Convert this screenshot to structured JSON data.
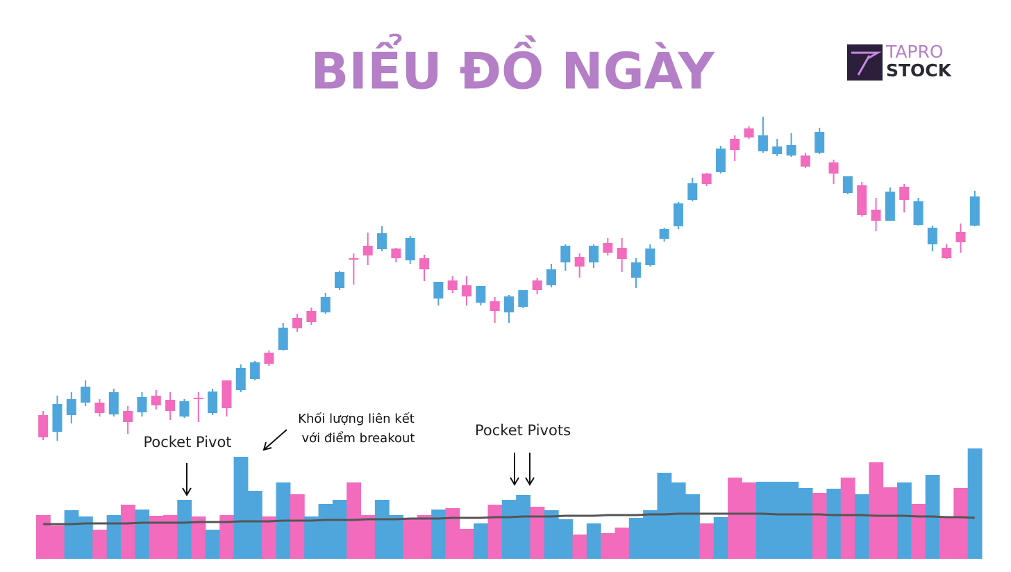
{
  "chart_data": {
    "type": "candlestick",
    "title": "BIỂU ĐỒ NGÀY",
    "up_color": "#4ea6dc",
    "down_color": "#f26bbd",
    "ylim": [
      0,
      500
    ],
    "y2lim": [
      0,
      160
    ],
    "open": [
      62,
      38,
      62,
      80,
      80,
      63,
      68,
      66,
      90,
      84,
      60,
      87,
      65,
      112,
      98,
      114,
      152,
      156,
      202,
      212,
      210,
      245,
      288,
      306,
      301,
      302,
      285,
      288,
      230,
      256,
      249,
      224,
      226,
      210,
      218,
      256,
      249,
      282,
      290,
      282,
      310,
      303,
      260,
      278,
      316,
      334,
      372,
      410,
      412,
      460,
      475,
      442,
      438,
      436,
      436,
      440,
      426,
      382,
      393,
      358,
      342,
      391,
      336,
      308,
      303,
      326,
      335
    ],
    "high": [
      68,
      90,
      95,
      112,
      85,
      100,
      75,
      95,
      98,
      95,
      85,
      95,
      100,
      112,
      135,
      140,
      155,
      195,
      208,
      217,
      238,
      270,
      295,
      325,
      334,
      303,
      320,
      293,
      254,
      262,
      262,
      248,
      232,
      235,
      242,
      260,
      280,
      308,
      295,
      308,
      317,
      317,
      288,
      308,
      332,
      369,
      404,
      411,
      450,
      465,
      478,
      492,
      460,
      468,
      440,
      476,
      430,
      406,
      398,
      375,
      390,
      395,
      375,
      335,
      308,
      338,
      385
    ],
    "low": [
      26,
      25,
      50,
      75,
      60,
      60,
      35,
      60,
      70,
      55,
      58,
      52,
      62,
      60,
      95,
      112,
      133,
      155,
      182,
      192,
      208,
      242,
      250,
      278,
      298,
      282,
      280,
      255,
      220,
      238,
      220,
      220,
      195,
      195,
      216,
      236,
      246,
      270,
      260,
      274,
      292,
      268,
      245,
      276,
      312,
      330,
      370,
      392,
      410,
      428,
      460,
      440,
      435,
      434,
      418,
      438,
      395,
      380,
      348,
      327,
      342,
      354,
      335,
      298,
      287,
      296,
      334
    ],
    "close": [
      30,
      78,
      85,
      103,
      65,
      95,
      52,
      88,
      76,
      68,
      82,
      85,
      96,
      72,
      130,
      138,
      136,
      188,
      187,
      196,
      232,
      268,
      286,
      292,
      324,
      288,
      317,
      272,
      254,
      242,
      233,
      248,
      212,
      233,
      242,
      242,
      272,
      306,
      276,
      306,
      296,
      287,
      282,
      302,
      330,
      367,
      396,
      395,
      446,
      444,
      462,
      465,
      449,
      451,
      420,
      470,
      410,
      406,
      350,
      342,
      384,
      372,
      370,
      332,
      288,
      311,
      377
    ],
    "volume": {
      "values": [
        63,
        48,
        70,
        61,
        42,
        63,
        78,
        71,
        62,
        63,
        85,
        61,
        42,
        63,
        147,
        98,
        61,
        110,
        93,
        61,
        79,
        85,
        110,
        63,
        85,
        63,
        57,
        63,
        71,
        73,
        43,
        51,
        78,
        85,
        92,
        75,
        70,
        57,
        35,
        51,
        37,
        45,
        59,
        70,
        124,
        110,
        93,
        51,
        60,
        117,
        110,
        111,
        111,
        111,
        102,
        95,
        101,
        117,
        93,
        139,
        103,
        110,
        79,
        121,
        61,
        102,
        159
      ],
      "colors": [
        "#f26bbd",
        "#f26bbd",
        "#4ea6dc",
        "#4ea6dc",
        "#f26bbd",
        "#4ea6dc",
        "#f26bbd",
        "#4ea6dc",
        "#f26bbd",
        "#f26bbd",
        "#4ea6dc",
        "#f26bbd",
        "#4ea6dc",
        "#f26bbd",
        "#4ea6dc",
        "#4ea6dc",
        "#f26bbd",
        "#4ea6dc",
        "#f26bbd",
        "#4ea6dc",
        "#4ea6dc",
        "#4ea6dc",
        "#f26bbd",
        "#f26bbd",
        "#4ea6dc",
        "#4ea6dc",
        "#f26bbd",
        "#f26bbd",
        "#4ea6dc",
        "#f26bbd",
        "#f26bbd",
        "#4ea6dc",
        "#f26bbd",
        "#4ea6dc",
        "#4ea6dc",
        "#f26bbd",
        "#4ea6dc",
        "#4ea6dc",
        "#f26bbd",
        "#4ea6dc",
        "#f26bbd",
        "#f26bbd",
        "#4ea6dc",
        "#4ea6dc",
        "#4ea6dc",
        "#4ea6dc",
        "#4ea6dc",
        "#f26bbd",
        "#4ea6dc",
        "#f26bbd",
        "#f26bbd",
        "#4ea6dc",
        "#4ea6dc",
        "#4ea6dc",
        "#4ea6dc",
        "#f26bbd",
        "#4ea6dc",
        "#f26bbd",
        "#4ea6dc",
        "#f26bbd",
        "#f26bbd",
        "#4ea6dc",
        "#f26bbd",
        "#4ea6dc",
        "#f26bbd",
        "#f26bbd",
        "#4ea6dc"
      ]
    },
    "average": {
      "color": "#555555",
      "values": [
        50,
        50,
        50,
        51,
        51,
        51,
        51,
        52,
        52,
        52,
        52,
        53,
        53,
        53,
        54,
        54,
        54,
        55,
        55,
        55,
        56,
        56,
        56,
        57,
        57,
        57,
        58,
        58,
        58,
        59,
        59,
        59,
        60,
        60,
        61,
        61,
        61,
        62,
        62,
        62,
        63,
        63,
        63,
        64,
        64,
        65,
        65,
        65,
        65,
        65,
        65,
        65,
        64,
        64,
        64,
        64,
        63,
        63,
        63,
        62,
        62,
        62,
        61,
        61,
        60,
        60,
        59
      ]
    },
    "annotations": [
      "Pocket Pivot",
      "Khối lượng liên kết",
      "với điểm breakout",
      "Pocket Pivots"
    ]
  },
  "brand": {
    "line1": "TAPRO",
    "line2": "STOCK"
  }
}
